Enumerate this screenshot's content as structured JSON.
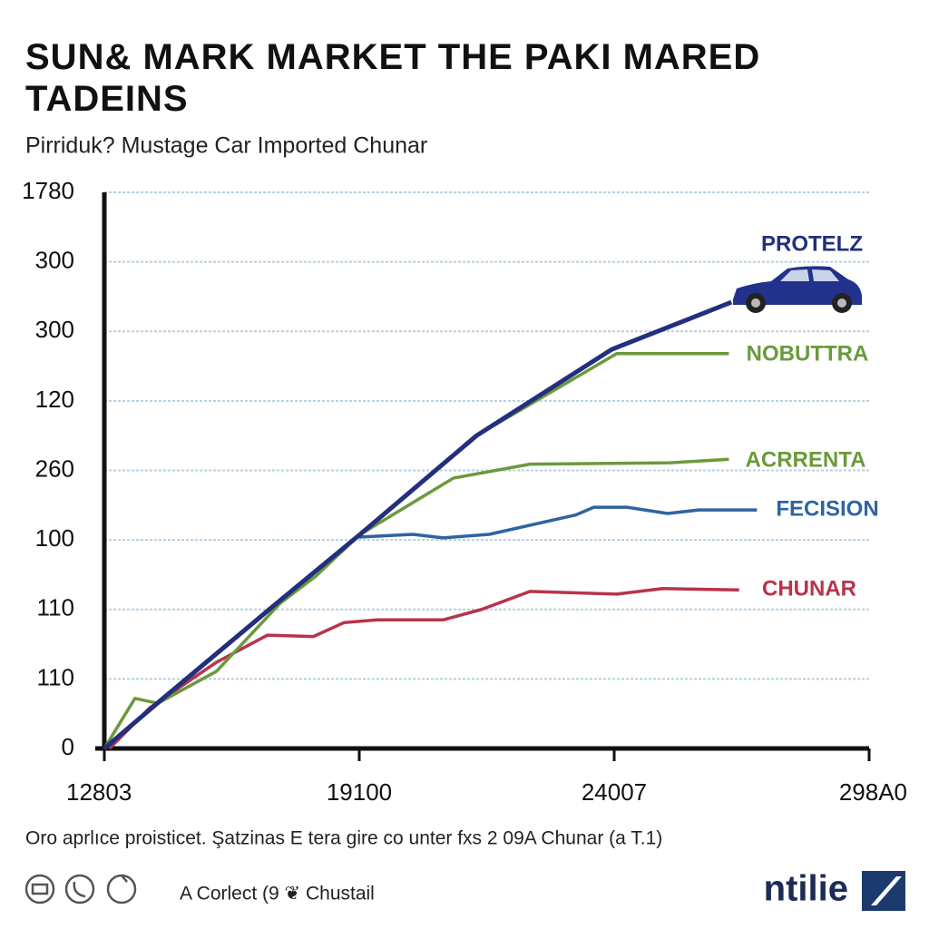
{
  "chart_data": {
    "type": "line",
    "title": "SUN& MARK MARKET THE PAKI MARED TADEINS",
    "subtitle": "Pirriduk? Mustage Car Imported Chunar",
    "xlim": [
      0,
      3
    ],
    "xticks": [
      {
        "value": 0,
        "label": "12803"
      },
      {
        "value": 1,
        "label": "19100"
      },
      {
        "value": 2,
        "label": "24007"
      },
      {
        "value": 3,
        "label": "298A0"
      }
    ],
    "ylim": [
      0,
      8
    ],
    "yticks": [
      {
        "value": 0,
        "label": "0"
      },
      {
        "value": 1,
        "label": "110"
      },
      {
        "value": 2,
        "label": "110"
      },
      {
        "value": 3,
        "label": "100"
      },
      {
        "value": 4,
        "label": "260"
      },
      {
        "value": 5,
        "label": "120"
      },
      {
        "value": 6,
        "label": "300"
      },
      {
        "value": 7,
        "label": "300"
      },
      {
        "value": 8,
        "label": "1780"
      }
    ],
    "grid": true,
    "series": [
      {
        "name": "PROTELZ",
        "color": "#232f7e",
        "x": [
          0,
          0.23,
          0.66,
          1.0,
          1.46,
          1.99,
          2.46
        ],
        "values": [
          0,
          0.72,
          2.04,
          3.07,
          4.5,
          5.74,
          6.42
        ]
      },
      {
        "name": "NOBUTTRA",
        "color": "#6a9a3c",
        "x": [
          0,
          1.0,
          1.46,
          2.01,
          2.45
        ],
        "values": [
          0,
          3.07,
          4.5,
          5.68,
          5.68
        ]
      },
      {
        "name": "ACRRENTA",
        "color": "#6a9a3c",
        "x": [
          0,
          0.12,
          0.21,
          0.44,
          0.69,
          0.83,
          1.0,
          1.37,
          1.67,
          2.22,
          2.45
        ],
        "values": [
          0,
          0.72,
          0.65,
          1.11,
          2.09,
          2.48,
          3.07,
          3.89,
          4.09,
          4.11,
          4.16
        ]
      },
      {
        "name": "FECISION",
        "color": "#2e64a0",
        "x": [
          1.0,
          1.21,
          1.33,
          1.51,
          1.85,
          1.92,
          2.05,
          2.21,
          2.33,
          2.56
        ],
        "values": [
          3.04,
          3.08,
          3.03,
          3.08,
          3.36,
          3.47,
          3.47,
          3.38,
          3.43,
          3.43
        ]
      },
      {
        "name": "CHUNAR",
        "color": "#b8334a",
        "x": [
          0.02,
          0.18,
          0.44,
          0.64,
          0.82,
          0.94,
          1.07,
          1.33,
          1.48,
          1.67,
          2.01,
          2.19,
          2.49
        ],
        "values": [
          0,
          0.59,
          1.24,
          1.63,
          1.61,
          1.81,
          1.85,
          1.85,
          2.0,
          2.26,
          2.22,
          2.3,
          2.28
        ]
      }
    ],
    "note": "Oro aprlıce proisticet. Şatzinas E tera gire co unter fxs 2 09A Chunar (a T.1)",
    "footer": "A Corlect (9 ❦ Chustail",
    "logo": "ntilie"
  }
}
